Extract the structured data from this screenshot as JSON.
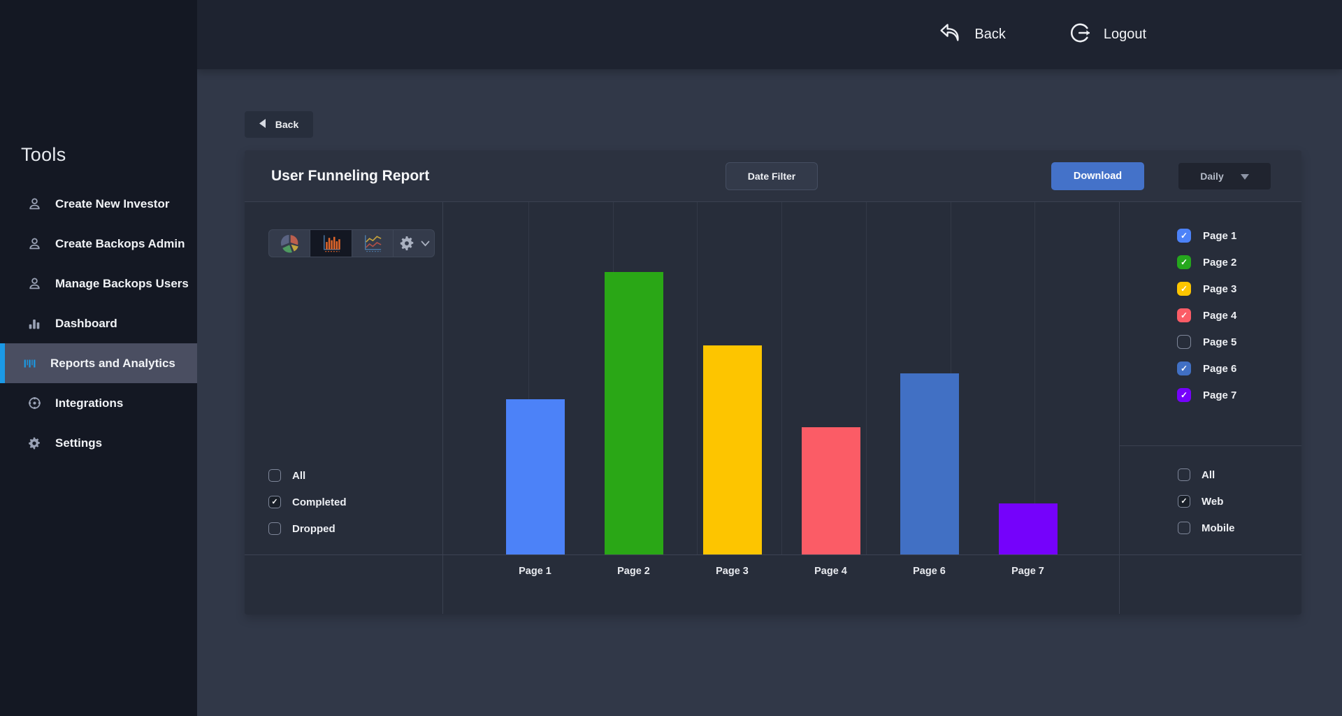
{
  "app": {
    "background": "#313848",
    "sidebar_bg": "#141823",
    "topbar_bg": "#1e2330",
    "card_bg": "#272d3a",
    "accent_download_blue": "#4472c9",
    "sidebar_active_accent": "#1b99e6"
  },
  "sidebar": {
    "heading": "Tools",
    "items": [
      {
        "label": "Create New Investor",
        "icon": "user-icon",
        "active": false
      },
      {
        "label": "Create Backops Admin",
        "icon": "user-icon",
        "active": false
      },
      {
        "label": "Manage Backops Users",
        "icon": "user-icon",
        "active": false
      },
      {
        "label": "Dashboard",
        "icon": "bar-chart-icon",
        "active": false
      },
      {
        "label": "Reports and Analytics",
        "icon": "report-bars-icon",
        "active": true
      },
      {
        "label": "Integrations",
        "icon": "integrations-icon",
        "active": false
      },
      {
        "label": "Settings",
        "icon": "gear-icon",
        "active": false
      }
    ]
  },
  "topbar": {
    "back": {
      "label": "Back",
      "icon": "back-arrow-icon"
    },
    "logout": {
      "label": "Logout",
      "icon": "logout-icon"
    }
  },
  "content": {
    "back_chip": {
      "label": "Back",
      "icon": "back-triangle-icon"
    }
  },
  "report": {
    "title": "User Funneling Report",
    "date_filter_label": "Date Filter",
    "download_label": "Download",
    "interval": {
      "selected": "Daily",
      "icon": "caret-down-icon"
    }
  },
  "chart_toolbar": {
    "buttons": [
      {
        "name": "pie-chart-button",
        "icon": "pie-chart-icon",
        "active": false,
        "has_caret": false
      },
      {
        "name": "bar-chart-button",
        "icon": "bar-graph-icon",
        "active": true,
        "has_caret": false
      },
      {
        "name": "line-chart-button",
        "icon": "line-chart-icon",
        "active": false,
        "has_caret": false
      },
      {
        "name": "chart-settings-button",
        "icon": "settings-gear-icon",
        "active": false,
        "has_caret": true
      }
    ]
  },
  "series_filters": [
    {
      "label": "All",
      "checked": false
    },
    {
      "label": "Completed",
      "checked": true
    },
    {
      "label": "Dropped",
      "checked": false
    }
  ],
  "page_filters": [
    {
      "label": "Page 1",
      "checked": true,
      "color": "#4c82f8"
    },
    {
      "label": "Page 2",
      "checked": true,
      "color": "#25a71d"
    },
    {
      "label": "Page 3",
      "checked": true,
      "color": "#fdc500"
    },
    {
      "label": "Page 4",
      "checked": true,
      "color": "#fb5c66"
    },
    {
      "label": "Page 5",
      "checked": false,
      "color": null
    },
    {
      "label": "Page 6",
      "checked": true,
      "color": "#4170c4"
    },
    {
      "label": "Page 7",
      "checked": true,
      "color": "#7502fb"
    }
  ],
  "device_filters": [
    {
      "label": "All",
      "checked": false
    },
    {
      "label": "Web",
      "checked": true
    },
    {
      "label": "Mobile",
      "checked": false
    }
  ],
  "chart_data": {
    "type": "bar",
    "title": "User Funneling Report",
    "categories": [
      "Page 1",
      "Page 2",
      "Page 3",
      "Page 4",
      "Page 6",
      "Page 7"
    ],
    "values_pct_of_max": [
      55,
      100,
      74,
      45,
      64,
      18
    ],
    "bar_colors": [
      "#4c82f8",
      "#2aa716",
      "#fdc500",
      "#fb5c66",
      "#4170c4",
      "#7502fb"
    ],
    "hidden_categories": [
      "Page 5"
    ],
    "xlabel": "",
    "ylabel": "",
    "y_axis_tick_labels_visible": false,
    "gridlines": "vertical-only",
    "legend_position": "right"
  }
}
